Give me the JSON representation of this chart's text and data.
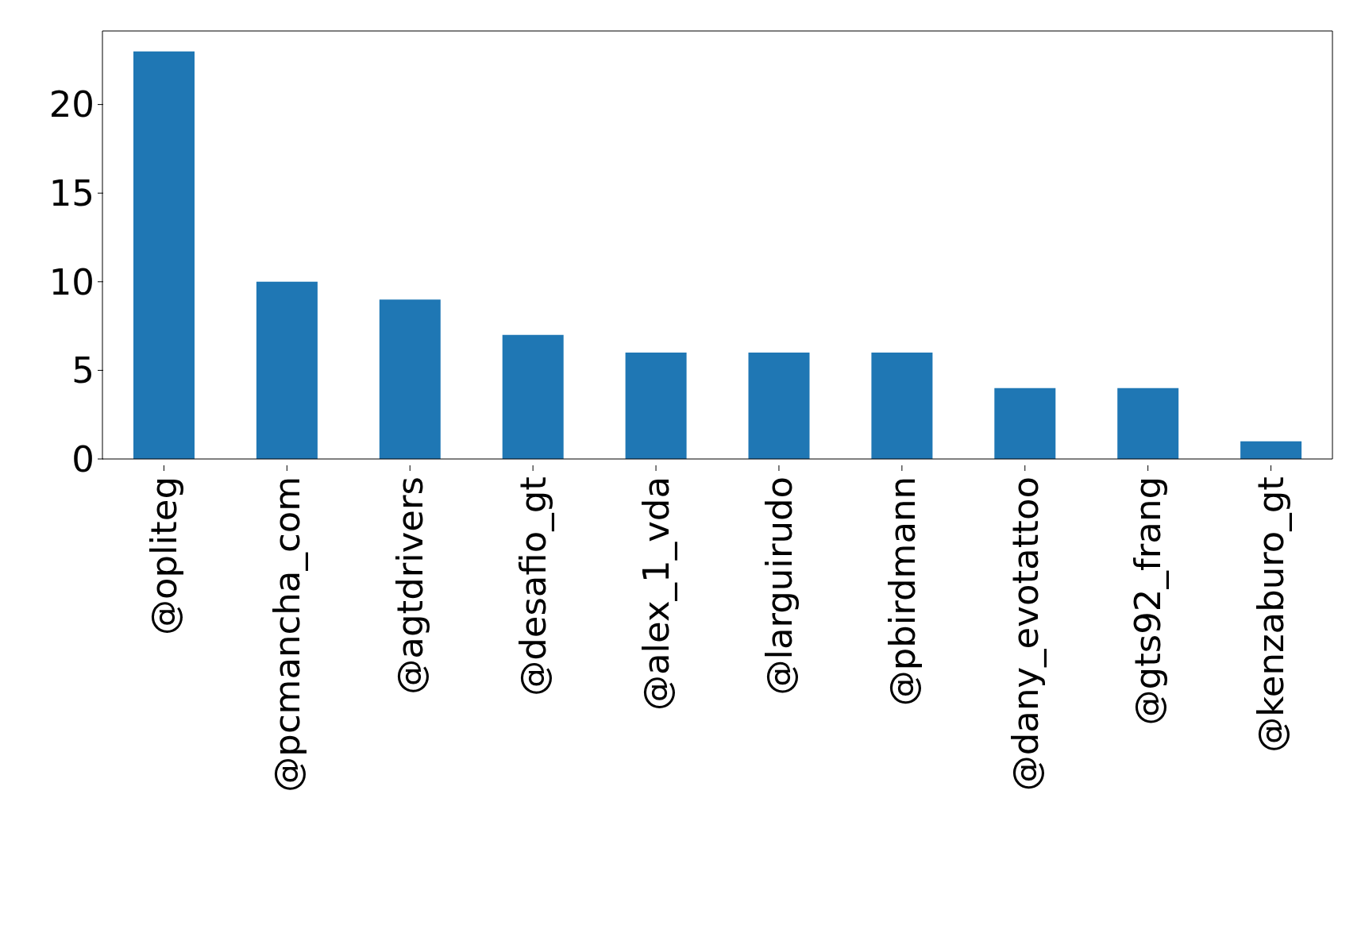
{
  "chart_data": {
    "type": "bar",
    "categories": [
      "@opliteg",
      "@pcmancha_com",
      "@agtdrivers",
      "@desafio_gt",
      "@alex_1_vda",
      "@larguirudo",
      "@pbirdmann",
      "@dany_evotattoo",
      "@gts92_frang",
      "@kenzaburo_gt"
    ],
    "values": [
      23,
      10,
      9,
      7,
      6,
      6,
      6,
      4,
      4,
      1
    ],
    "color": "#1f77b4",
    "ylim": [
      0,
      24.15
    ],
    "yticks": [
      0,
      5,
      10,
      15,
      20
    ],
    "grid": false
  }
}
